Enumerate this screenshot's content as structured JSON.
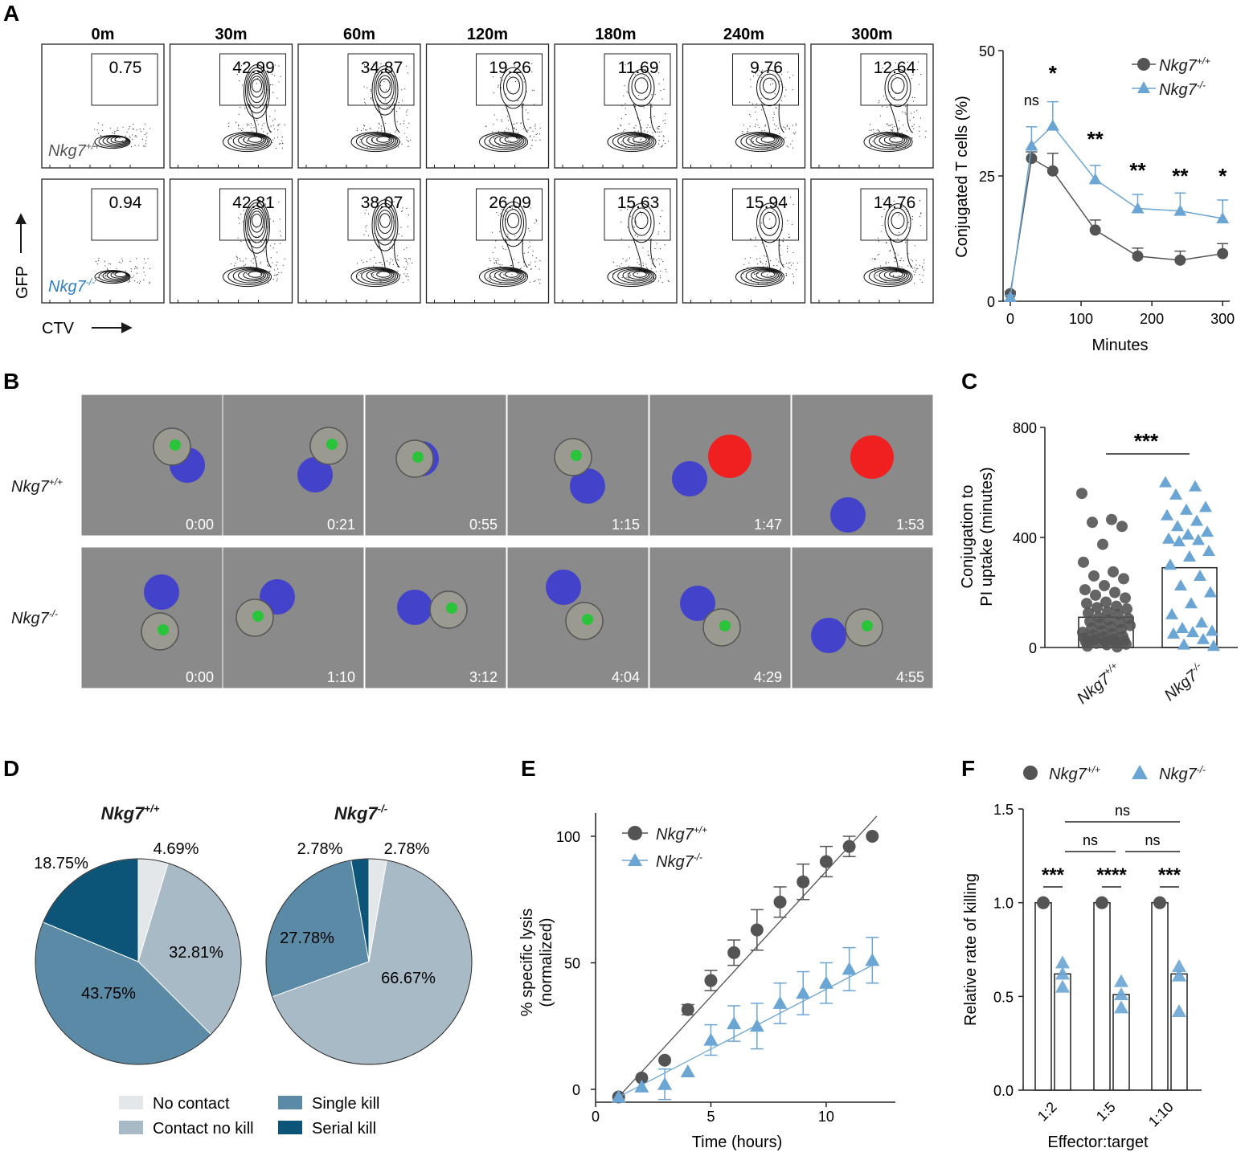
{
  "colors": {
    "wt": "#545454",
    "ko": "#6aa5d4",
    "no_contact": "#e4e7e9",
    "contact_no_kill": "#a8bac6",
    "single_kill": "#5a8aa6",
    "serial_kill": "#0c5478"
  },
  "panel_labels": {
    "a": "A",
    "b": "B",
    "c": "C",
    "d": "D",
    "e": "E",
    "f": "F"
  },
  "genotypes": {
    "wt_base": "Nkg7",
    "wt_sup": "+/+",
    "ko_base": "Nkg7",
    "ko_sup": "-/-"
  },
  "flow": {
    "times": [
      "0m",
      "30m",
      "60m",
      "120m",
      "180m",
      "240m",
      "300m"
    ],
    "wt_values": [
      "0.75",
      "42.99",
      "34.87",
      "19.26",
      "11.69",
      "9.76",
      "12.64"
    ],
    "ko_values": [
      "0.94",
      "42.81",
      "38.07",
      "26.09",
      "15.63",
      "15.94",
      "14.76"
    ],
    "y_axis": "GFP",
    "x_axis": "CTV"
  },
  "micro": {
    "wt_times": [
      "0:00",
      "0:21",
      "0:55",
      "1:15",
      "1:47",
      "1:53"
    ],
    "ko_times": [
      "0:00",
      "1:10",
      "3:12",
      "4:04",
      "4:29",
      "4:55"
    ]
  },
  "chart_data": [
    {
      "id": "A-line",
      "type": "line",
      "xlabel": "Minutes",
      "ylabel": "Conjugated T cells (%)",
      "xlim": [
        0,
        310
      ],
      "ylim": [
        0,
        50
      ],
      "xticks": [
        0,
        100,
        200,
        300
      ],
      "yticks": [
        0,
        25,
        50
      ],
      "x": [
        0,
        30,
        60,
        120,
        180,
        240,
        300
      ],
      "series": [
        {
          "name": "Nkg7+/+",
          "values": [
            1.5,
            28.5,
            26,
            14.2,
            9,
            8.2,
            9.5
          ],
          "errors": [
            0.5,
            1.3,
            3.5,
            2,
            1.6,
            1.8,
            2
          ]
        },
        {
          "name": "Nkg7-/-",
          "values": [
            0.8,
            31,
            35,
            24.3,
            18.5,
            18,
            16.5
          ],
          "errors": [
            0.4,
            3.8,
            4.8,
            2.8,
            2.8,
            3.6,
            3.7
          ]
        }
      ],
      "annotations": [
        "ns",
        "*",
        "**",
        "**",
        "**",
        "*"
      ],
      "legend": "top-right"
    },
    {
      "id": "C",
      "type": "scatter",
      "ylabel": "Conjugation to PI uptake (minutes)",
      "ylim": [
        0,
        800
      ],
      "yticks": [
        0,
        400,
        800
      ],
      "categories": [
        "Nkg7+/+",
        "Nkg7-/-"
      ],
      "means": [
        110,
        290
      ],
      "points": [
        [
          560,
          465,
          455,
          440,
          375,
          310,
          275,
          260,
          250,
          225,
          210,
          200,
          190,
          180,
          165,
          160,
          150,
          145,
          140,
          130,
          125,
          120,
          110,
          105,
          100,
          95,
          90,
          85,
          80,
          75,
          70,
          65,
          60,
          55,
          50,
          45,
          40,
          38,
          35,
          30,
          28,
          25,
          22,
          20,
          18,
          15,
          12,
          10,
          5,
          2
        ],
        [
          600,
          585,
          555,
          510,
          500,
          480,
          460,
          440,
          420,
          410,
          395,
          390,
          385,
          350,
          330,
          300,
          260,
          225,
          200,
          160,
          120,
          90,
          70,
          60,
          55,
          50,
          30,
          10,
          5
        ]
      ],
      "significance": "***"
    },
    {
      "id": "D",
      "type": "pie",
      "legend_labels": [
        "No contact",
        "Contact no kill",
        "Single kill",
        "Serial kill"
      ],
      "pies": [
        {
          "title": "Nkg7+/+",
          "values": [
            4.69,
            32.81,
            43.75,
            18.75
          ],
          "labels": [
            "4.69%",
            "32.81%",
            "43.75%",
            "18.75%"
          ]
        },
        {
          "title": "Nkg7-/-",
          "values": [
            2.78,
            66.67,
            27.78,
            2.78
          ],
          "labels": [
            "2.78%",
            "66.67%",
            "27.78%",
            "2.78%"
          ]
        }
      ]
    },
    {
      "id": "E",
      "type": "scatter",
      "xlabel": "Time (hours)",
      "ylabel": "% specific lysis (normalized)",
      "xlim": [
        0,
        13
      ],
      "ylim": [
        -5,
        110
      ],
      "xticks": [
        0,
        5,
        10
      ],
      "yticks": [
        0,
        50,
        100
      ],
      "series": [
        {
          "name": "Nkg7+/+",
          "x": [
            1,
            2,
            3,
            4,
            5,
            6,
            7,
            8,
            9,
            10,
            11,
            12
          ],
          "values": [
            -3,
            4.5,
            11.5,
            31.5,
            43,
            54,
            63,
            74,
            82,
            90,
            96,
            100
          ],
          "errors": [
            0,
            0,
            0,
            2,
            4,
            5,
            8,
            6,
            7,
            6,
            4,
            0
          ],
          "fit": [
            [
              1,
              -3
            ],
            [
              12.2,
              108
            ]
          ]
        },
        {
          "name": "Nkg7-/-",
          "x": [
            1,
            2,
            3,
            4,
            5,
            6,
            7,
            8,
            9,
            10,
            11,
            12
          ],
          "values": [
            -3,
            1,
            2,
            7,
            19.5,
            26,
            25,
            34,
            38,
            42,
            47.5,
            51
          ],
          "errors": [
            0,
            0,
            6,
            0,
            6,
            7,
            9,
            8,
            8.5,
            8,
            8.5,
            9
          ],
          "fit": [
            [
              1,
              -3
            ],
            [
              12.2,
              50
            ]
          ]
        }
      ]
    },
    {
      "id": "F",
      "type": "bar",
      "xlabel": "Effector:target",
      "ylabel": "Relative rate of killing",
      "ylim": [
        0,
        1.5
      ],
      "yticks": [
        "0.0",
        "0.5",
        "1.0",
        "1.5"
      ],
      "categories": [
        "1:2",
        "1:5",
        "1:10"
      ],
      "series": [
        {
          "name": "Nkg7+/+",
          "values": [
            1,
            1,
            1
          ],
          "points": [
            [
              1
            ],
            [
              1
            ],
            [
              1
            ]
          ]
        },
        {
          "name": "Nkg7-/-",
          "values": [
            0.62,
            0.51,
            0.62
          ],
          "points": [
            [
              0.68,
              0.62,
              0.55
            ],
            [
              0.58,
              0.51,
              0.44
            ],
            [
              0.66,
              0.61,
              0.42
            ]
          ]
        }
      ],
      "significance": [
        {
          "label": "***",
          "group": 0
        },
        {
          "label": "****",
          "group": 1
        },
        {
          "label": "***",
          "group": 2
        }
      ],
      "brackets": [
        {
          "label": "ns",
          "from": 0,
          "to": 2
        },
        {
          "label": "ns",
          "from": 0,
          "to": 1
        },
        {
          "label": "ns",
          "from": 1,
          "to": 2
        }
      ]
    }
  ]
}
